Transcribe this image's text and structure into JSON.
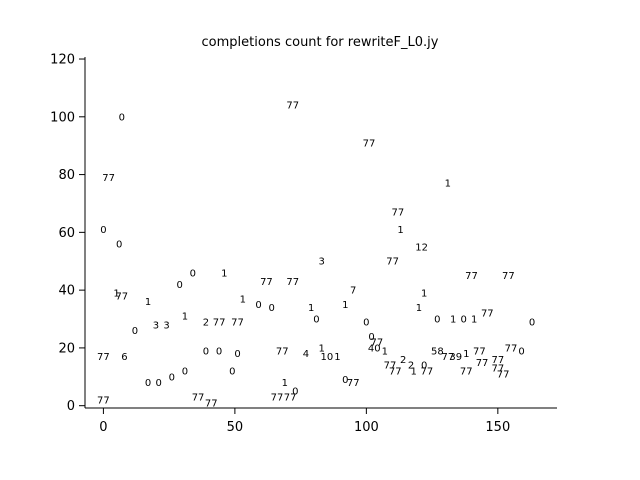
{
  "window": {
    "background": "#ffffff"
  },
  "colors": {
    "axis": "#000000",
    "text": "#000000",
    "background": "#ffffff"
  },
  "chart_data": {
    "type": "scatter",
    "title": "completions count for rewriteF_L0.jy",
    "xlabel": "",
    "ylabel": "",
    "marker_style": "text-label",
    "grid": false,
    "legend": null,
    "xlim": [
      -7,
      172.5
    ],
    "ylim": [
      -0.8,
      120.7
    ],
    "xticks": [
      0,
      50,
      100,
      150
    ],
    "yticks": [
      0,
      20,
      40,
      60,
      80,
      100,
      120
    ],
    "points": [
      {
        "x": 0,
        "y": 61,
        "label": "0"
      },
      {
        "x": 0,
        "y": 17,
        "label": "77"
      },
      {
        "x": 0,
        "y": 2,
        "label": "77"
      },
      {
        "x": 2,
        "y": 79,
        "label": "77"
      },
      {
        "x": 5,
        "y": 39,
        "label": "1"
      },
      {
        "x": 6,
        "y": 56,
        "label": "0"
      },
      {
        "x": 7,
        "y": 100,
        "label": "0"
      },
      {
        "x": 7,
        "y": 38,
        "label": "77"
      },
      {
        "x": 8,
        "y": 17,
        "label": "6"
      },
      {
        "x": 12,
        "y": 26,
        "label": "0"
      },
      {
        "x": 17,
        "y": 36,
        "label": "1"
      },
      {
        "x": 17,
        "y": 8,
        "label": "0"
      },
      {
        "x": 20,
        "y": 28,
        "label": "3"
      },
      {
        "x": 21,
        "y": 8,
        "label": "0"
      },
      {
        "x": 24,
        "y": 28,
        "label": "3"
      },
      {
        "x": 26,
        "y": 10,
        "label": "0"
      },
      {
        "x": 29,
        "y": 42,
        "label": "0"
      },
      {
        "x": 31,
        "y": 31,
        "label": "1"
      },
      {
        "x": 31,
        "y": 12,
        "label": "0"
      },
      {
        "x": 34,
        "y": 46,
        "label": "0"
      },
      {
        "x": 36,
        "y": 3,
        "label": "77"
      },
      {
        "x": 39,
        "y": 29,
        "label": "2"
      },
      {
        "x": 39,
        "y": 19,
        "label": "0"
      },
      {
        "x": 41,
        "y": 1,
        "label": "77"
      },
      {
        "x": 44,
        "y": 29,
        "label": "77"
      },
      {
        "x": 44,
        "y": 19,
        "label": "0"
      },
      {
        "x": 46,
        "y": 46,
        "label": "1"
      },
      {
        "x": 49,
        "y": 12,
        "label": "0"
      },
      {
        "x": 51,
        "y": 29,
        "label": "77"
      },
      {
        "x": 51,
        "y": 18,
        "label": "0"
      },
      {
        "x": 53,
        "y": 37,
        "label": "1"
      },
      {
        "x": 59,
        "y": 35,
        "label": "0"
      },
      {
        "x": 62,
        "y": 43,
        "label": "77"
      },
      {
        "x": 64,
        "y": 34,
        "label": "0"
      },
      {
        "x": 66,
        "y": 3,
        "label": "77"
      },
      {
        "x": 68,
        "y": 19,
        "label": "77"
      },
      {
        "x": 69,
        "y": 8,
        "label": "1"
      },
      {
        "x": 71,
        "y": 3,
        "label": "77"
      },
      {
        "x": 72,
        "y": 104,
        "label": "77"
      },
      {
        "x": 72,
        "y": 43,
        "label": "77"
      },
      {
        "x": 73,
        "y": 5,
        "label": "0"
      },
      {
        "x": 77,
        "y": 18,
        "label": "4"
      },
      {
        "x": 79,
        "y": 34,
        "label": "1"
      },
      {
        "x": 81,
        "y": 30,
        "label": "0"
      },
      {
        "x": 83,
        "y": 50,
        "label": "3"
      },
      {
        "x": 83,
        "y": 20,
        "label": "1"
      },
      {
        "x": 85,
        "y": 17,
        "label": "10"
      },
      {
        "x": 89,
        "y": 17,
        "label": "1"
      },
      {
        "x": 92,
        "y": 35,
        "label": "1"
      },
      {
        "x": 92,
        "y": 9,
        "label": "0"
      },
      {
        "x": 95,
        "y": 40,
        "label": "7"
      },
      {
        "x": 95,
        "y": 8,
        "label": "77"
      },
      {
        "x": 100,
        "y": 29,
        "label": "0"
      },
      {
        "x": 101,
        "y": 91,
        "label": "77"
      },
      {
        "x": 102,
        "y": 24,
        "label": "0"
      },
      {
        "x": 103,
        "y": 20,
        "label": "40"
      },
      {
        "x": 104,
        "y": 22,
        "label": "77"
      },
      {
        "x": 107,
        "y": 19,
        "label": "1"
      },
      {
        "x": 109,
        "y": 14,
        "label": "77"
      },
      {
        "x": 110,
        "y": 50,
        "label": "77"
      },
      {
        "x": 111,
        "y": 12,
        "label": "77"
      },
      {
        "x": 112,
        "y": 67,
        "label": "77"
      },
      {
        "x": 113,
        "y": 61,
        "label": "1"
      },
      {
        "x": 114,
        "y": 16,
        "label": "2"
      },
      {
        "x": 117,
        "y": 14,
        "label": "2"
      },
      {
        "x": 118,
        "y": 12,
        "label": "1"
      },
      {
        "x": 120,
        "y": 34,
        "label": "1"
      },
      {
        "x": 121,
        "y": 55,
        "label": "12"
      },
      {
        "x": 122,
        "y": 39,
        "label": "1"
      },
      {
        "x": 122,
        "y": 14,
        "label": "0"
      },
      {
        "x": 123,
        "y": 12,
        "label": "77"
      },
      {
        "x": 127,
        "y": 30,
        "label": "0"
      },
      {
        "x": 127,
        "y": 19,
        "label": "58"
      },
      {
        "x": 131,
        "y": 77,
        "label": "1"
      },
      {
        "x": 131,
        "y": 17,
        "label": "77"
      },
      {
        "x": 133,
        "y": 30,
        "label": "1"
      },
      {
        "x": 134,
        "y": 17,
        "label": "39"
      },
      {
        "x": 137,
        "y": 30,
        "label": "0"
      },
      {
        "x": 138,
        "y": 18,
        "label": "1"
      },
      {
        "x": 138,
        "y": 12,
        "label": "77"
      },
      {
        "x": 140,
        "y": 45,
        "label": "77"
      },
      {
        "x": 141,
        "y": 30,
        "label": "1"
      },
      {
        "x": 143,
        "y": 19,
        "label": "77"
      },
      {
        "x": 144,
        "y": 15,
        "label": "77"
      },
      {
        "x": 146,
        "y": 32,
        "label": "77"
      },
      {
        "x": 150,
        "y": 16,
        "label": "77"
      },
      {
        "x": 150,
        "y": 13,
        "label": "77"
      },
      {
        "x": 152,
        "y": 11,
        "label": "77"
      },
      {
        "x": 154,
        "y": 45,
        "label": "77"
      },
      {
        "x": 155,
        "y": 20,
        "label": "77"
      },
      {
        "x": 159,
        "y": 19,
        "label": "0"
      },
      {
        "x": 163,
        "y": 29,
        "label": "0"
      }
    ]
  }
}
